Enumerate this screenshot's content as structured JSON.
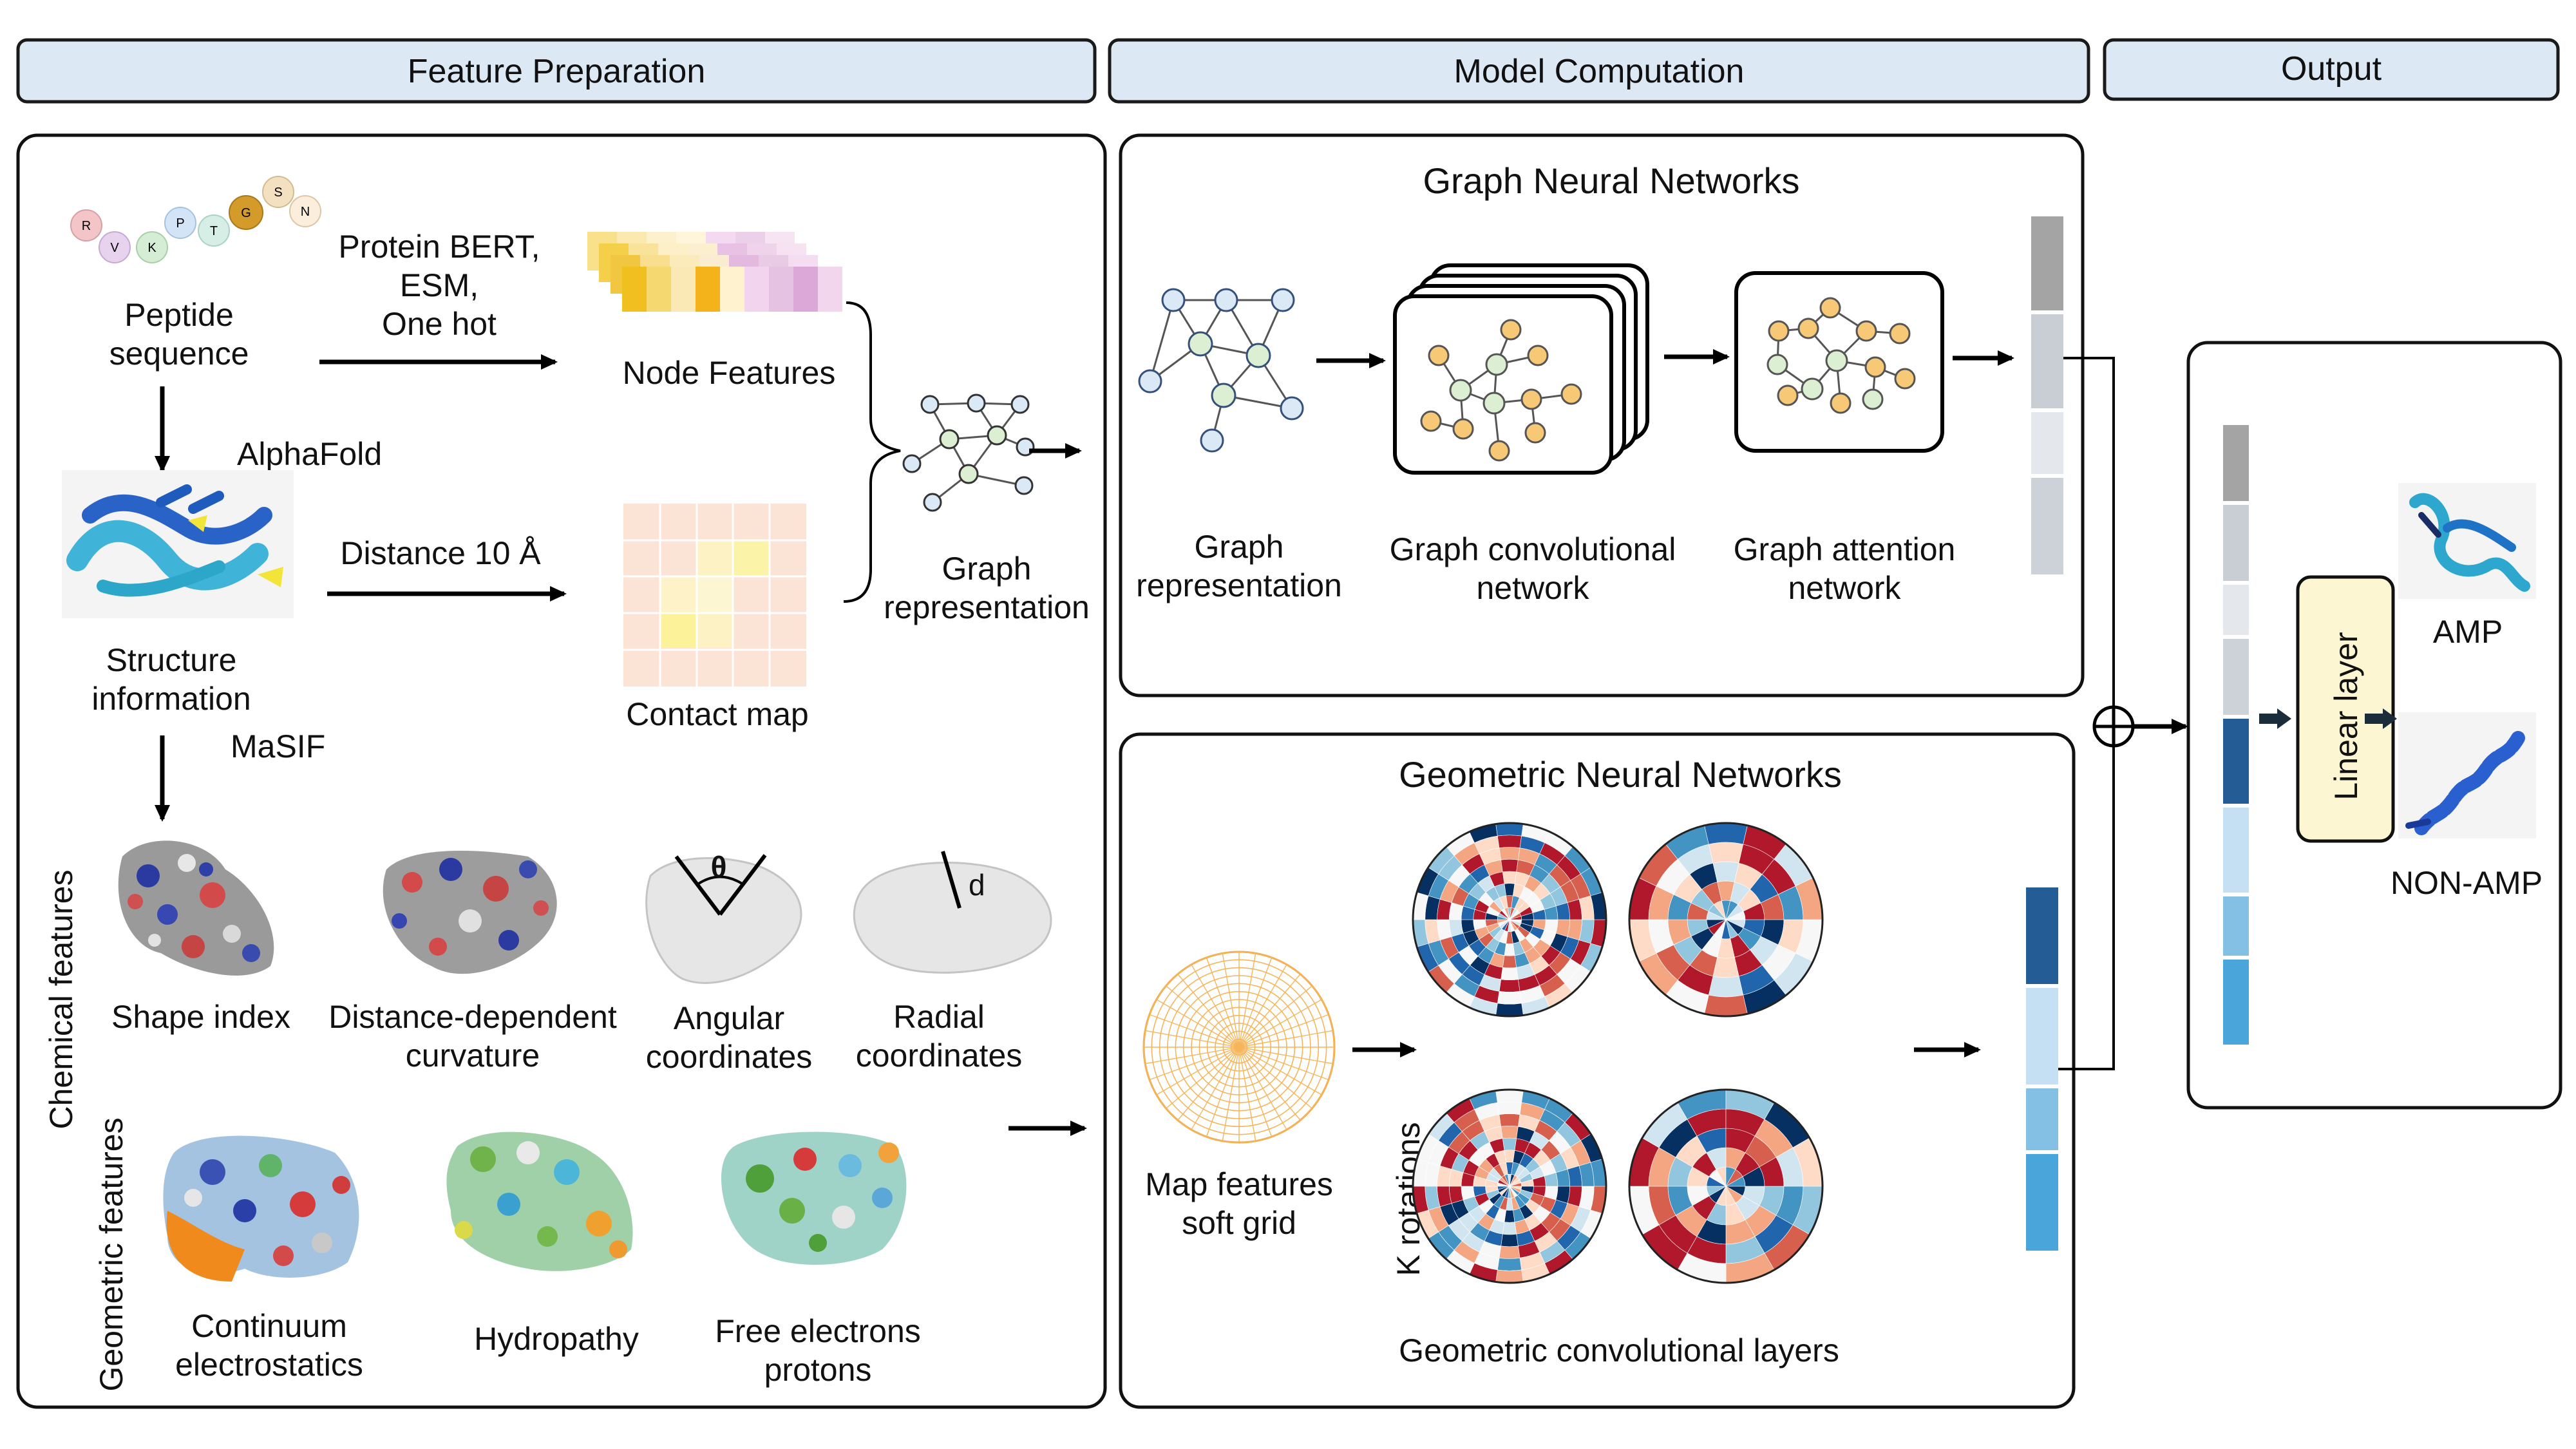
{
  "headers": {
    "feature_preparation": "Feature Preparation",
    "model_computation": "Model Computation",
    "output": "Output"
  },
  "feature_prep": {
    "peptide_letters": [
      "R",
      "V",
      "K",
      "P",
      "T",
      "G",
      "S",
      "N"
    ],
    "peptide_sequence": [
      "Peptide",
      "sequence"
    ],
    "encoders": [
      "Protein BERT,",
      "ESM,",
      "One hot"
    ],
    "node_features": "Node Features",
    "alphafold": "AlphaFold",
    "structure_information": [
      "Structure",
      "information"
    ],
    "distance": "Distance 10 Å",
    "contact_map": "Contact map",
    "graph_representation": [
      "Graph",
      "representation"
    ],
    "masif": "MaSIF",
    "chemical_features": "Chemical features",
    "geometric_features": "Geometric features",
    "angle_symbol": "θ",
    "radius_symbol": "d",
    "surfaces_row1": [
      [
        "Shape index"
      ],
      [
        "Distance-dependent",
        "curvature"
      ],
      [
        "Angular",
        "coordinates"
      ],
      [
        "Radial",
        "coordinates"
      ]
    ],
    "surfaces_row2": [
      [
        "Continuum",
        "electrostatics"
      ],
      [
        "Hydropathy"
      ],
      [
        "Free electrons",
        "protons"
      ]
    ]
  },
  "gnn": {
    "title": "Graph Neural Networks",
    "graph_representation": [
      "Graph",
      "representation"
    ],
    "gcn": [
      "Graph convolutional",
      "network"
    ],
    "gat": [
      "Graph attention",
      "network"
    ],
    "output_bar_colors": [
      "#a4a4a4",
      "#c9ced4",
      "#e4e7eb",
      "#cdd2d8"
    ]
  },
  "geo": {
    "title": "Geometric Neural Networks",
    "map_features": [
      "Map features",
      "soft grid"
    ],
    "k_rotations": "K rotations",
    "conv_layers": "Geometric convolutional layers",
    "output_bar_colors": [
      "#245c96",
      "#c5e0f2",
      "#84c0e4",
      "#4aa6da"
    ]
  },
  "output": {
    "linear_layer": "Linear layer",
    "amp": "AMP",
    "non_amp": "NON-AMP",
    "combined_bar_colors": [
      "#a4a4a4",
      "#c9ced4",
      "#e4e7eb",
      "#cdd2d8",
      "#245c96",
      "#c5e0f2",
      "#84c0e4",
      "#4aa6da"
    ]
  },
  "colors": {
    "header_fill": "#dce9f5",
    "graph_node_blue": "#dbe8f6",
    "graph_node_green": "#dcefd2",
    "graph_node_orange": "#f7c977",
    "linear_layer_fill": "#fdf6d3"
  }
}
